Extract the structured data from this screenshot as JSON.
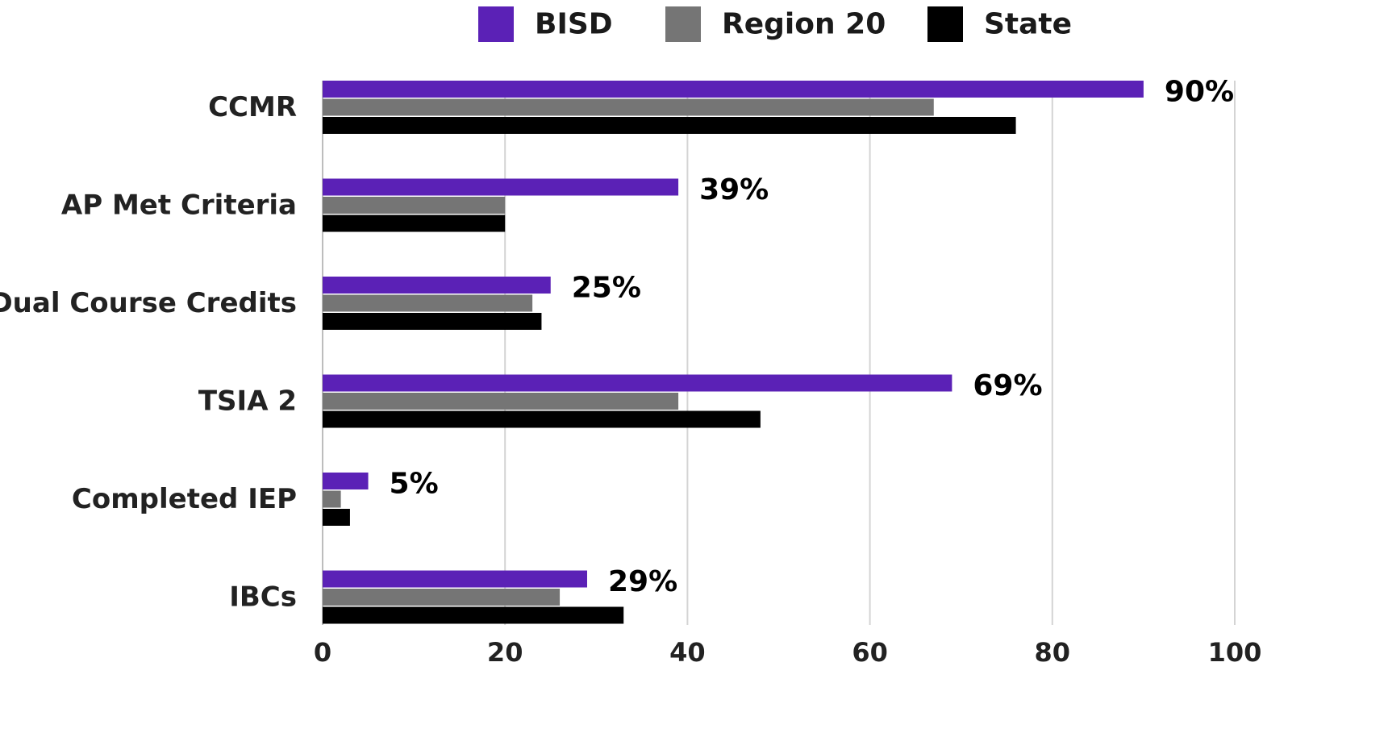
{
  "chart_data": {
    "type": "bar",
    "orientation": "horizontal",
    "categories": [
      "CCMR",
      "AP Met Criteria",
      "Dual Course Credits",
      "TSIA 2",
      "Completed IEP",
      "IBCs"
    ],
    "series": [
      {
        "name": "BISD",
        "color": "#5b21b6",
        "values": [
          90,
          39,
          25,
          69,
          5,
          29
        ]
      },
      {
        "name": "Region 20",
        "color": "#757575",
        "values": [
          67,
          20,
          23,
          39,
          2,
          26
        ]
      },
      {
        "name": "State",
        "color": "#000000",
        "values": [
          76,
          20,
          24,
          48,
          3,
          33
        ]
      }
    ],
    "data_labels": [
      "90%",
      "39%",
      "25%",
      "69%",
      "5%",
      "29%"
    ],
    "xlim": [
      0,
      100
    ],
    "xticks": [
      "0",
      "20",
      "40",
      "60",
      "80",
      "100"
    ],
    "grid": "vertical",
    "legend_position": "top"
  }
}
